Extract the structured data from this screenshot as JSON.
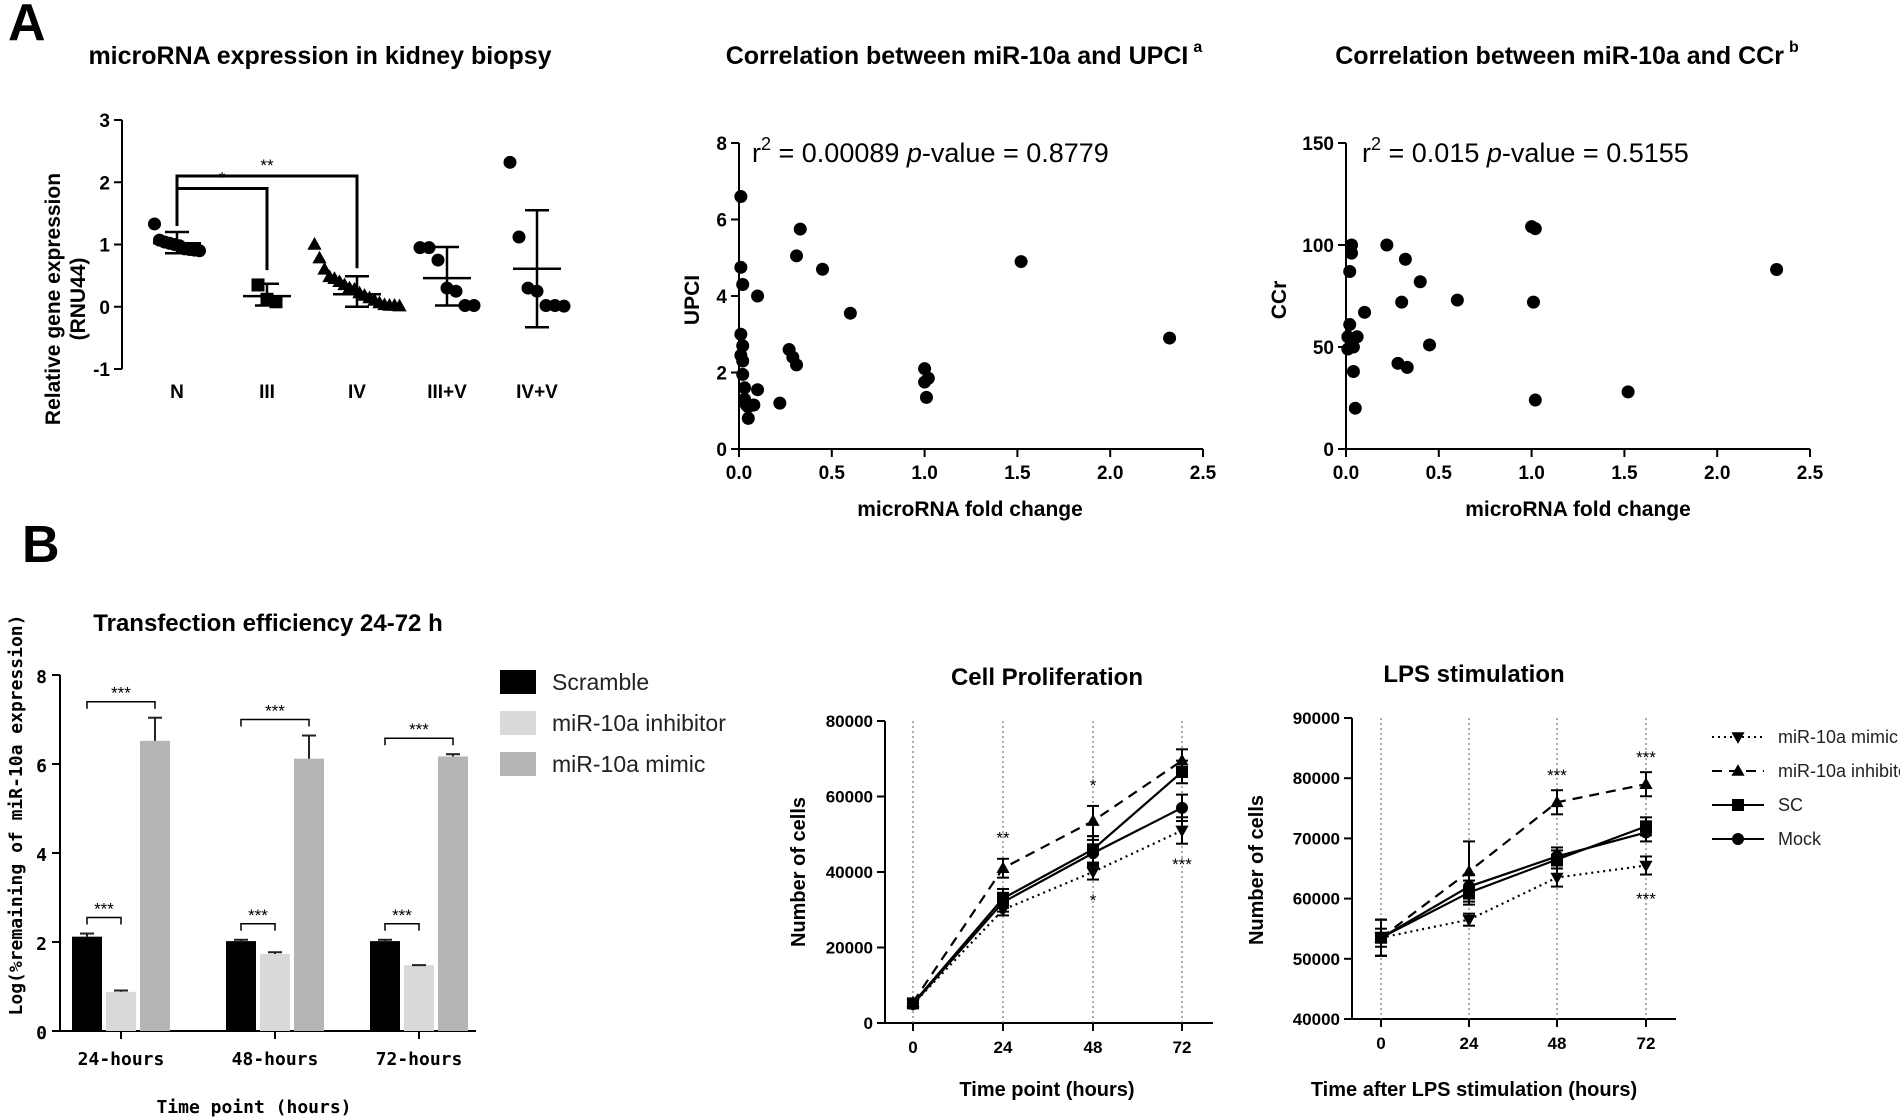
{
  "panel_labels": {
    "a": "A",
    "b": "B"
  },
  "chart_data": [
    {
      "id": "c1",
      "type": "scatter",
      "title": "microRNA expression in kidney biopsy",
      "ylabel_line1": "Relative gene expression",
      "ylabel_line2": "(RNU44)",
      "xlabel": "",
      "ylim": [
        -1,
        3
      ],
      "yticks": [
        -1,
        0,
        1,
        2,
        3
      ],
      "ytick_labels": [
        "-1",
        "0",
        "1",
        "2",
        "3"
      ],
      "categories": [
        "N",
        "III",
        "IV",
        "III+V",
        "IV+V"
      ],
      "markers": [
        "circle",
        "square",
        "triangle",
        "circle",
        "circle"
      ],
      "points": [
        [
          1.33,
          1.07,
          1.04,
          1.02,
          1.0,
          0.98,
          0.93,
          0.92,
          0.91,
          0.9
        ],
        [
          0.35,
          0.12,
          0.08
        ],
        [
          1.0,
          0.78,
          0.6,
          0.48,
          0.45,
          0.4,
          0.35,
          0.3,
          0.28,
          0.22,
          0.18,
          0.14,
          0.1,
          0.06,
          0.03,
          0.02,
          0.02,
          0.01
        ],
        [
          0.95,
          0.95,
          0.75,
          0.3,
          0.25,
          0.02,
          0.02
        ],
        [
          2.32,
          1.12,
          0.3,
          0.25,
          0.02,
          0.02,
          0.01
        ]
      ],
      "means": [
        1.02,
        0.17,
        0.2,
        0.46,
        0.61
      ],
      "sd_low": [
        0.86,
        0.02,
        0.0,
        0.02,
        -0.33
      ],
      "sd_high": [
        1.2,
        0.37,
        0.49,
        0.96,
        1.55
      ],
      "brackets": [
        {
          "from": 0,
          "to": 1,
          "y": 1.9,
          "label": "*"
        },
        {
          "from": 0,
          "to": 2,
          "y": 2.1,
          "label": "**"
        }
      ]
    },
    {
      "id": "c2",
      "type": "scatter",
      "title": "Correlation between miR-10a and UPCI",
      "title_sup": "a",
      "annotation_r": "r",
      "annotation_r_sup": "2",
      "annotation_r_val": " = 0.00089 ",
      "annotation_p": "p",
      "annotation_p_text": "-value = 0.8779",
      "xlabel": "microRNA fold change",
      "ylabel": "UPCI",
      "xlim": [
        0,
        2.5
      ],
      "ylim": [
        0,
        8
      ],
      "xticks": [
        0,
        0.5,
        1,
        1.5,
        2,
        2.5
      ],
      "xtick_labels": [
        "0.0",
        "0.5",
        "1.0",
        "1.5",
        "2.0",
        "2.5"
      ],
      "yticks": [
        0,
        2,
        4,
        6,
        8
      ],
      "ytick_labels": [
        "0",
        "2",
        "4",
        "6",
        "8"
      ],
      "x": [
        0.01,
        0.01,
        0.02,
        0.01,
        0.02,
        0.01,
        0.02,
        0.02,
        0.03,
        0.03,
        0.04,
        0.05,
        0.05,
        0.08,
        0.1,
        0.1,
        0.22,
        0.27,
        0.29,
        0.31,
        0.31,
        0.33,
        0.45,
        0.6,
        1.0,
        1.0,
        1.01,
        1.02,
        1.52,
        2.32
      ],
      "y": [
        6.6,
        4.75,
        4.3,
        3.0,
        2.7,
        2.45,
        2.3,
        1.95,
        1.6,
        1.3,
        1.15,
        1.1,
        0.8,
        1.15,
        4.0,
        1.55,
        1.2,
        2.6,
        2.4,
        2.2,
        5.05,
        5.75,
        4.7,
        3.55,
        2.1,
        1.75,
        1.35,
        1.85,
        4.9,
        2.9
      ]
    },
    {
      "id": "c3",
      "type": "scatter",
      "title": "Correlation between miR-10a and CCr",
      "title_sup": "b",
      "annotation_r": "r",
      "annotation_r_sup": "2",
      "annotation_r_val": " = 0.015 ",
      "annotation_p": "p",
      "annotation_p_text": "-value = 0.5155",
      "xlabel": "microRNA fold change",
      "ylabel": "CCr",
      "xlim": [
        0,
        2.5
      ],
      "ylim": [
        0,
        150
      ],
      "xticks": [
        0,
        0.5,
        1,
        1.5,
        2,
        2.5
      ],
      "xtick_labels": [
        "0.0",
        "0.5",
        "1.0",
        "1.5",
        "2.0",
        "2.5"
      ],
      "yticks": [
        0,
        50,
        100,
        150
      ],
      "ytick_labels": [
        "0",
        "50",
        "100",
        "150"
      ],
      "x": [
        0.01,
        0.01,
        0.02,
        0.02,
        0.03,
        0.03,
        0.04,
        0.04,
        0.05,
        0.06,
        0.1,
        0.22,
        0.28,
        0.3,
        0.32,
        0.33,
        0.4,
        0.45,
        0.6,
        1.0,
        1.02,
        1.01,
        1.02,
        1.52,
        2.32
      ],
      "y": [
        49,
        55,
        61,
        87,
        100,
        96,
        50,
        38,
        20,
        55,
        67,
        100,
        42,
        72,
        93,
        40,
        82,
        51,
        73,
        109,
        108,
        72,
        24,
        28,
        88
      ]
    },
    {
      "id": "c4",
      "type": "bar",
      "title": "Transfection efficiency 24-72 h",
      "xlabel": "Time point (hours)",
      "ylabel": "Log(%remaining of miR-10a expression)",
      "ylim": [
        0,
        8
      ],
      "yticks": [
        0,
        2,
        4,
        6,
        8
      ],
      "ytick_labels": [
        "0",
        "2",
        "4",
        "6",
        "8"
      ],
      "categories": [
        "24-hours",
        "48-hours",
        "72-hours"
      ],
      "series": [
        {
          "name": "Scramble",
          "color": "#000000",
          "values": [
            2.12,
            2.02,
            2.02
          ],
          "err": [
            0.07,
            0.03,
            0.03
          ]
        },
        {
          "name": "miR-10a inhibitor",
          "color": "#d9d9d9",
          "values": [
            0.88,
            1.73,
            1.48
          ],
          "err": [
            0.03,
            0.04,
            0.0
          ]
        },
        {
          "name": "miR-10a mimic",
          "color": "#b5b5b5",
          "values": [
            6.52,
            6.12,
            6.17
          ],
          "err": [
            0.52,
            0.52,
            0.05
          ]
        }
      ],
      "sig_low": "***",
      "sig_high": "***"
    },
    {
      "id": "c5",
      "type": "line",
      "title": "Cell Proliferation",
      "xlabel": "Time point (hours)",
      "ylabel": "Number of cells",
      "x": [
        0,
        24,
        48,
        72
      ],
      "xtick_labels": [
        "0",
        "24",
        "48",
        "72"
      ],
      "ylim": [
        0,
        80000
      ],
      "yticks": [
        0,
        20000,
        40000,
        60000,
        80000
      ],
      "ytick_labels": [
        "0",
        "20000",
        "40000",
        "60000",
        "80000"
      ],
      "series": [
        {
          "name": "miR-10a mimic",
          "marker": "tri-down",
          "dash": "dotted",
          "values": [
            5000,
            30000,
            40000,
            51000
          ],
          "err": [
            900,
            1500,
            2000,
            3500
          ]
        },
        {
          "name": "miR-10a inhibitor",
          "marker": "tri-up",
          "dash": "dashed",
          "values": [
            5500,
            41000,
            53500,
            69500
          ],
          "err": [
            900,
            2500,
            4000,
            3000
          ]
        },
        {
          "name": "SC",
          "marker": "square",
          "dash": "solid",
          "values": [
            5200,
            33000,
            46000,
            66500
          ],
          "err": [
            900,
            2500,
            3500,
            3000
          ]
        },
        {
          "name": "Mock",
          "marker": "circle",
          "dash": "solid",
          "values": [
            5000,
            32000,
            45000,
            57000
          ],
          "err": [
            900,
            2500,
            3500,
            3500
          ]
        }
      ],
      "annotations": [
        {
          "x": 24,
          "y": 47500,
          "text": "**"
        },
        {
          "x": 48,
          "y": 61500,
          "text": "*"
        },
        {
          "x": 48,
          "y": 31000,
          "text": "*"
        },
        {
          "x": 72,
          "y": 40500,
          "text": "***"
        }
      ]
    },
    {
      "id": "c6",
      "type": "line",
      "title": "LPS stimulation",
      "xlabel": "Time after LPS stimulation (hours)",
      "ylabel": "Number of cells",
      "x": [
        0,
        24,
        48,
        72
      ],
      "xtick_labels": [
        "0",
        "24",
        "48",
        "72"
      ],
      "ylim": [
        40000,
        90000
      ],
      "yticks": [
        40000,
        50000,
        60000,
        70000,
        80000,
        90000
      ],
      "ytick_labels": [
        "40000",
        "50000",
        "60000",
        "70000",
        "80000",
        "90000"
      ],
      "series": [
        {
          "name": "miR-10a mimic",
          "marker": "tri-down",
          "dash": "dotted",
          "values": [
            53500,
            56500,
            63500,
            65500
          ],
          "err": [
            1500,
            1000,
            1500,
            1500
          ]
        },
        {
          "name": "miR-10a inhibitor",
          "marker": "tri-up",
          "dash": "dashed",
          "values": [
            53500,
            64500,
            76000,
            79000
          ],
          "err": [
            3000,
            5000,
            2000,
            2000
          ]
        },
        {
          "name": "SC",
          "marker": "square",
          "dash": "solid",
          "values": [
            53500,
            61000,
            66500,
            72000
          ],
          "err": [
            3000,
            2000,
            1500,
            1500
          ]
        },
        {
          "name": "Mock",
          "marker": "circle",
          "dash": "solid",
          "values": [
            53500,
            62000,
            67000,
            71000
          ],
          "err": [
            3000,
            2000,
            1500,
            1500
          ]
        }
      ],
      "annotations": [
        {
          "x": 48,
          "y": 79500,
          "text": "***"
        },
        {
          "x": 72,
          "y": 82500,
          "text": "***"
        },
        {
          "x": 72,
          "y": 59000,
          "text": "***"
        }
      ]
    }
  ],
  "legend_b": [
    "Scramble",
    "miR-10a inhibitor",
    "miR-10a mimic"
  ],
  "legend_c": [
    "miR-10a mimic",
    "miR-10a inhibitor",
    "SC",
    "Mock"
  ]
}
